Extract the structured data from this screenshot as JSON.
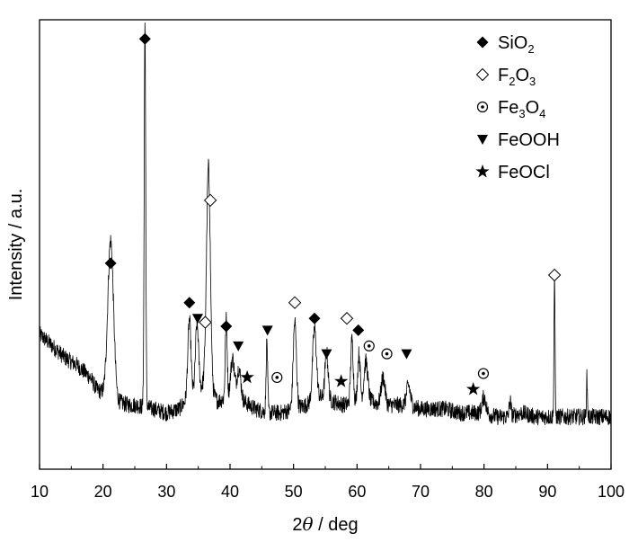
{
  "chart_data": {
    "type": "line",
    "xlabel_prefix": "2",
    "xlabel_symbol": "θ",
    "xlabel_suffix": " / deg",
    "ylabel": "Intensity / a.u.",
    "xlim": [
      10,
      100
    ],
    "xticks": [
      10,
      20,
      30,
      40,
      50,
      60,
      70,
      80,
      90,
      100
    ],
    "yticks_shown": false,
    "ylim": [
      0,
      100
    ],
    "baseline": [
      [
        10,
        27
      ],
      [
        12,
        24
      ],
      [
        14,
        21
      ],
      [
        16,
        19
      ],
      [
        18,
        16
      ],
      [
        19,
        13
      ],
      [
        20,
        12
      ],
      [
        22,
        10
      ],
      [
        24,
        9
      ],
      [
        25,
        9
      ],
      [
        28,
        8
      ],
      [
        30,
        7
      ],
      [
        32,
        8
      ],
      [
        33,
        10
      ],
      [
        35,
        12
      ],
      [
        36,
        15
      ],
      [
        38,
        10
      ],
      [
        40,
        11
      ],
      [
        42,
        10
      ],
      [
        44,
        8
      ],
      [
        46,
        7
      ],
      [
        48,
        7
      ],
      [
        50,
        8
      ],
      [
        52,
        9
      ],
      [
        54,
        11
      ],
      [
        56,
        10
      ],
      [
        58,
        9
      ],
      [
        60,
        10
      ],
      [
        62,
        10
      ],
      [
        64,
        9
      ],
      [
        66,
        9
      ],
      [
        68,
        9
      ],
      [
        70,
        8
      ],
      [
        72,
        8
      ],
      [
        74,
        8
      ],
      [
        76,
        7
      ],
      [
        78,
        7
      ],
      [
        80,
        7
      ],
      [
        82,
        6
      ],
      [
        84,
        6
      ],
      [
        86,
        7
      ],
      [
        88,
        6
      ],
      [
        90,
        6
      ],
      [
        92,
        6
      ],
      [
        94,
        6
      ],
      [
        96,
        6
      ],
      [
        98,
        6
      ],
      [
        100,
        6
      ]
    ],
    "peaks": [
      {
        "x": 21.2,
        "h": 40,
        "w": 0.45
      },
      {
        "x": 26.6,
        "h": 97,
        "w": 0.12
      },
      {
        "x": 33.6,
        "h": 20,
        "w": 0.25
      },
      {
        "x": 34.8,
        "h": 18,
        "w": 0.25
      },
      {
        "x": 36.6,
        "h": 56,
        "w": 0.3
      },
      {
        "x": 39.4,
        "h": 20,
        "w": 0.15
      },
      {
        "x": 40.4,
        "h": 10,
        "w": 0.3
      },
      {
        "x": 41.4,
        "h": 8,
        "w": 0.3
      },
      {
        "x": 45.8,
        "h": 18,
        "w": 0.12
      },
      {
        "x": 50.2,
        "h": 22,
        "w": 0.25
      },
      {
        "x": 53.3,
        "h": 18,
        "w": 0.3
      },
      {
        "x": 55.2,
        "h": 12,
        "w": 0.25
      },
      {
        "x": 59.2,
        "h": 16,
        "w": 0.2
      },
      {
        "x": 60.3,
        "h": 12,
        "w": 0.2
      },
      {
        "x": 61.4,
        "h": 10,
        "w": 0.3
      },
      {
        "x": 64.1,
        "h": 7,
        "w": 0.3
      },
      {
        "x": 68.1,
        "h": 5,
        "w": 0.3
      },
      {
        "x": 80.0,
        "h": 4,
        "w": 0.3
      },
      {
        "x": 84.1,
        "h": 4,
        "w": 0.15
      },
      {
        "x": 91.1,
        "h": 37,
        "w": 0.08
      },
      {
        "x": 96.2,
        "h": 10,
        "w": 0.08
      }
    ],
    "markers": [
      {
        "type": "SiO2",
        "x": 21.2,
        "y": 45
      },
      {
        "type": "SiO2",
        "x": 26.6,
        "y": 102
      },
      {
        "type": "SiO2",
        "x": 33.6,
        "y": 35
      },
      {
        "type": "SiO2",
        "x": 39.4,
        "y": 29
      },
      {
        "type": "SiO2",
        "x": 53.3,
        "y": 31
      },
      {
        "type": "SiO2",
        "x": 60.2,
        "y": 28
      },
      {
        "type": "F2O3",
        "x": 36.9,
        "y": 61
      },
      {
        "type": "F2O3",
        "x": 36.1,
        "y": 30
      },
      {
        "type": "F2O3",
        "x": 50.2,
        "y": 35
      },
      {
        "type": "F2O3",
        "x": 58.4,
        "y": 31
      },
      {
        "type": "F2O3",
        "x": 91.1,
        "y": 42
      },
      {
        "type": "Fe3O4",
        "x": 47.4,
        "y": 16
      },
      {
        "type": "Fe3O4",
        "x": 61.9,
        "y": 24
      },
      {
        "type": "Fe3O4",
        "x": 64.7,
        "y": 22
      },
      {
        "type": "Fe3O4",
        "x": 79.9,
        "y": 17
      },
      {
        "type": "FeOOH",
        "x": 34.9,
        "y": 31
      },
      {
        "type": "FeOOH",
        "x": 41.3,
        "y": 24
      },
      {
        "type": "FeOOH",
        "x": 45.9,
        "y": 28
      },
      {
        "type": "FeOOH",
        "x": 55.2,
        "y": 22
      },
      {
        "type": "FeOOH",
        "x": 67.8,
        "y": 22
      },
      {
        "type": "FeOCl",
        "x": 42.7,
        "y": 16
      },
      {
        "type": "FeOCl",
        "x": 57.5,
        "y": 15
      },
      {
        "type": "FeOCl",
        "x": 78.3,
        "y": 13
      }
    ],
    "legend": [
      {
        "type": "SiO2",
        "label": "SiO",
        "sub": "2",
        "label2": "",
        "sub2": ""
      },
      {
        "type": "F2O3",
        "label": "F",
        "sub": "2",
        "label2": "O",
        "sub2": "3"
      },
      {
        "type": "Fe3O4",
        "label": "Fe",
        "sub": "3",
        "label2": "O",
        "sub2": "4"
      },
      {
        "type": "FeOOH",
        "label": "FeOOH",
        "sub": "",
        "label2": "",
        "sub2": ""
      },
      {
        "type": "FeOCl",
        "label": "FeOCl",
        "sub": "",
        "label2": "",
        "sub2": ""
      }
    ],
    "legend_position": "top-right",
    "grid": false,
    "line_color": "#000000"
  }
}
